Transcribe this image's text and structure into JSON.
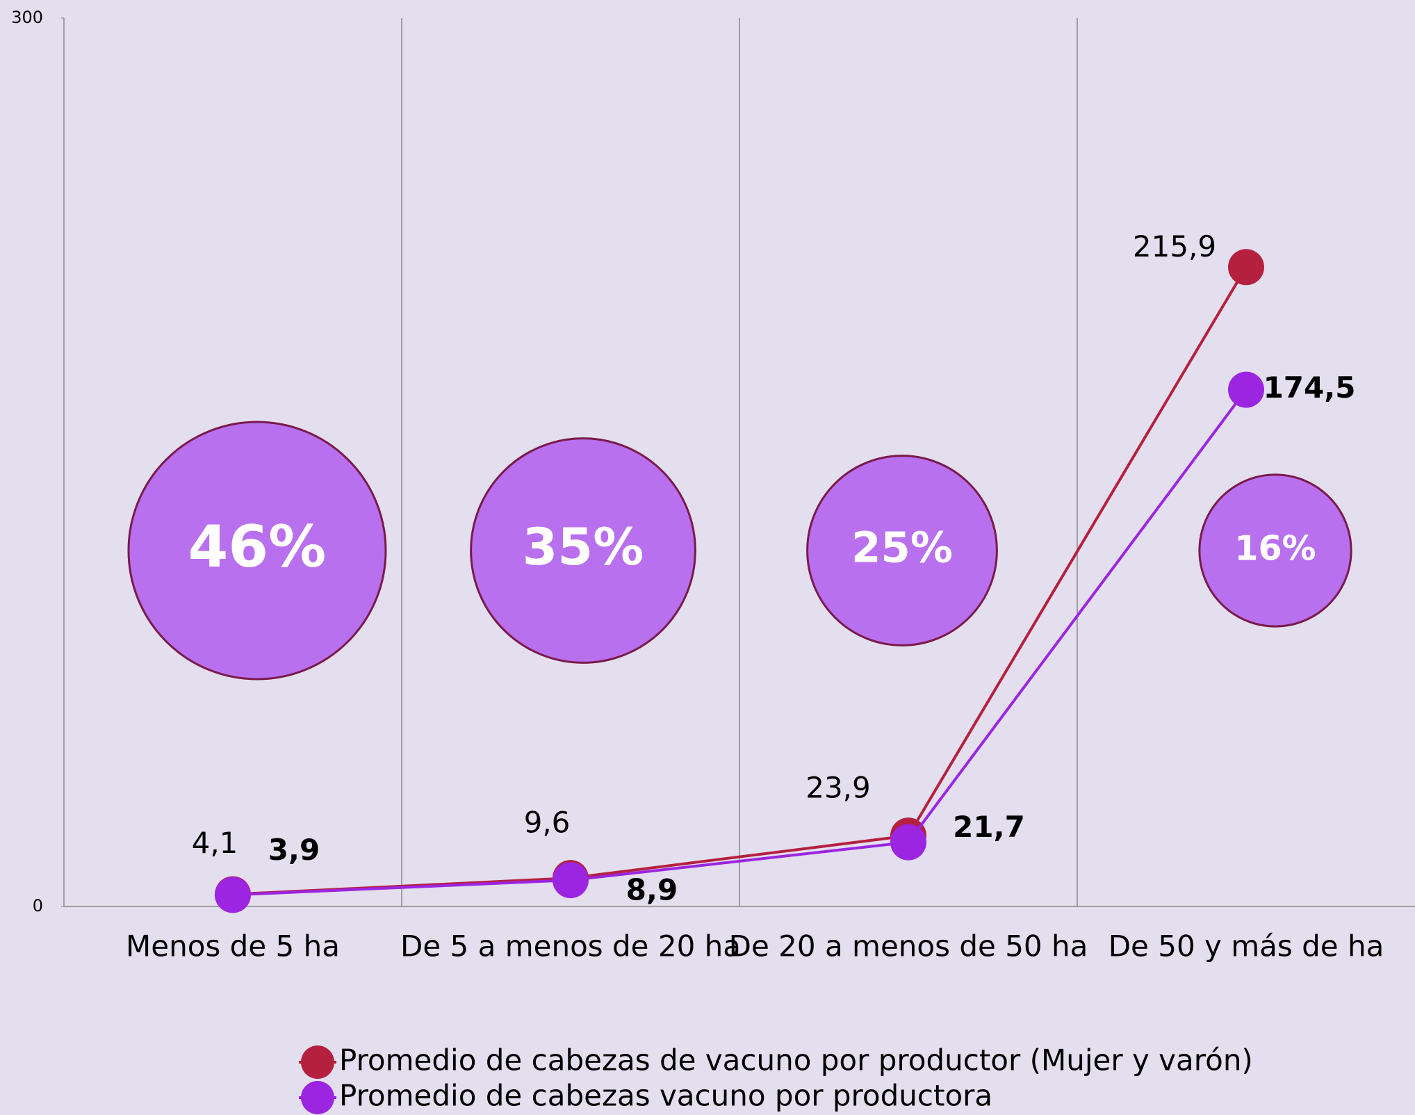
{
  "chart_data": {
    "type": "line",
    "categories": [
      "Menos de 5 ha",
      "De 5 a menos de 20 ha",
      "De 20 a menos de 50 ha",
      "De 50 y más de ha"
    ],
    "series": [
      {
        "name": "Promedio de cabezas de vacuno por productor (Mujer y varón)",
        "color": "#b5203f",
        "values": [
          4.1,
          9.6,
          23.9,
          215.9
        ],
        "value_labels": [
          "4,1",
          "9,6",
          "23,9",
          "215,9"
        ]
      },
      {
        "name": "Promedio de cabezas vacuno por productora",
        "color": "#9b25e0",
        "values": [
          3.9,
          8.9,
          21.7,
          174.5
        ],
        "value_labels": [
          "3,9",
          "8,9",
          "21,7",
          "174,5"
        ]
      }
    ],
    "bubbles": {
      "values": [
        46,
        35,
        25,
        16
      ],
      "value_labels": [
        "46%",
        "35%",
        "25%",
        "16%"
      ],
      "color": "#b870ef",
      "edge_color": "#7a1a4a"
    },
    "ylim": [
      0,
      300
    ],
    "yticks": [
      0,
      300
    ],
    "grid": true
  }
}
